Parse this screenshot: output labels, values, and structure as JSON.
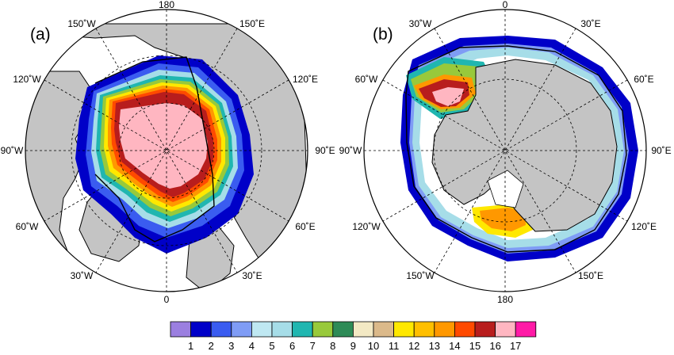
{
  "panels": [
    {
      "label": "(a)",
      "longitudes": [
        "180",
        "150˚E",
        "120˚E",
        "90˚E",
        "60˚E",
        "30˚E",
        "0",
        "30˚W",
        "60˚W",
        "90˚W",
        "120˚W",
        "150˚W"
      ]
    },
    {
      "label": "(b)",
      "longitudes": [
        "0",
        "30˚E",
        "60˚E",
        "90˚E",
        "120˚E",
        "150˚E",
        "180",
        "150˚W",
        "120˚W",
        "90˚W",
        "60˚W",
        "30˚W"
      ]
    }
  ],
  "legend": {
    "labels": [
      "1",
      "2",
      "3",
      "4",
      "5",
      "6",
      "7",
      "8",
      "9",
      "10",
      "11",
      "12",
      "13",
      "14",
      "15",
      "16",
      "17"
    ],
    "colors": [
      "#9b7fe0",
      "#0000c8",
      "#3a5cf0",
      "#7f9cf5",
      "#bfe8f2",
      "#a6dde8",
      "#20b6b0",
      "#98c93b",
      "#2e8b57",
      "#f3e9c4",
      "#dbb98a",
      "#ffe800",
      "#ffbf00",
      "#ff9800",
      "#ff4a00",
      "#b81d1d",
      "#ffb6c1",
      "#ff1aa6"
    ]
  }
}
